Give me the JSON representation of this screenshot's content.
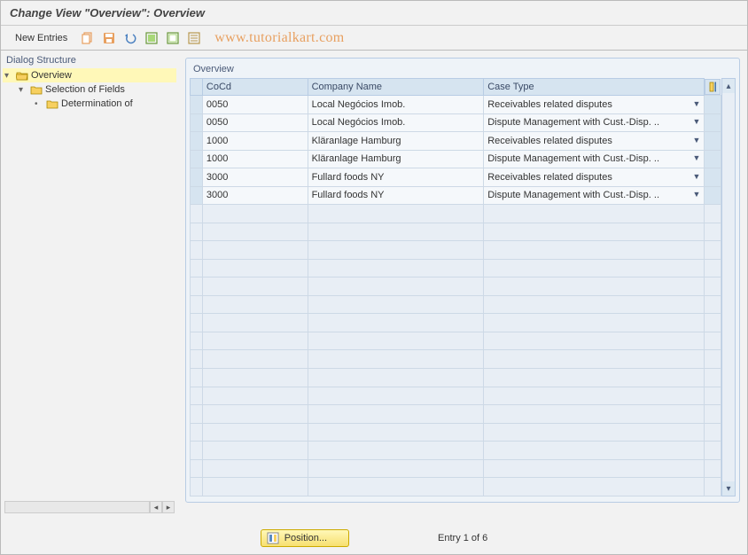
{
  "title": "Change View \"Overview\": Overview",
  "watermark": "www.tutorialkart.com",
  "toolbar": {
    "new_entries": "New Entries"
  },
  "sidebar": {
    "header": "Dialog Structure",
    "items": [
      {
        "label": "Overview",
        "level": 0,
        "open": true,
        "selected": true
      },
      {
        "label": "Selection of Fields",
        "level": 1,
        "open": true,
        "selected": false
      },
      {
        "label": "Determination of",
        "level": 2,
        "open": false,
        "selected": false
      }
    ]
  },
  "group": {
    "title": "Overview",
    "columns": [
      "CoCd",
      "Company Name",
      "Case Type"
    ],
    "rows": [
      {
        "cocd": "0050",
        "company": "Local Negócios Imob.",
        "case": "Receivables related disputes"
      },
      {
        "cocd": "0050",
        "company": "Local Negócios Imob.",
        "case": "Dispute Management with Cust.-Disp. .."
      },
      {
        "cocd": "1000",
        "company": "Kläranlage Hamburg",
        "case": "Receivables related disputes"
      },
      {
        "cocd": "1000",
        "company": "Kläranlage Hamburg",
        "case": "Dispute Management with Cust.-Disp. .."
      },
      {
        "cocd": "3000",
        "company": "Fullard foods NY",
        "case": "Receivables related disputes"
      },
      {
        "cocd": "3000",
        "company": "Fullard foods NY",
        "case": "Dispute Management with Cust.-Disp. .."
      }
    ],
    "empty_rows": 16
  },
  "footer": {
    "position_label": "Position...",
    "entry_label": "Entry 1 of 6"
  },
  "colors": {
    "header_bg": "#d6e4f0",
    "cell_bg": "#f5f8fb",
    "border": "#b8cce4",
    "highlight": "#fff8b8"
  }
}
